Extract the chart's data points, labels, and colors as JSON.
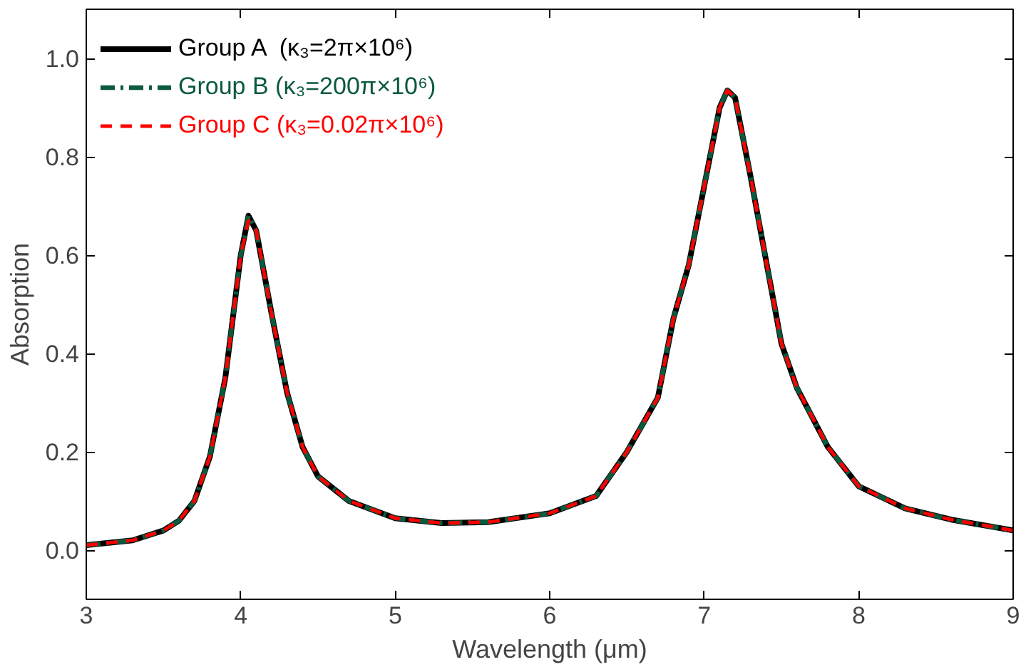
{
  "chart_data": {
    "type": "line",
    "xlabel": "Wavelength (μm)",
    "ylabel": "Absorption",
    "x": [
      3,
      3.3,
      3.5,
      3.6,
      3.7,
      3.8,
      3.9,
      4.0,
      4.05,
      4.1,
      4.2,
      4.3,
      4.4,
      4.5,
      4.7,
      5.0,
      5.3,
      5.6,
      6.0,
      6.3,
      6.5,
      6.7,
      6.8,
      6.9,
      7.0,
      7.1,
      7.15,
      7.2,
      7.3,
      7.4,
      7.5,
      7.6,
      7.7,
      7.8,
      8.0,
      8.3,
      8.6,
      9.0
    ],
    "series": [
      {
        "name": "Group A  (κ₃=2π×10⁶)",
        "color": "#000000",
        "line_style": "solid",
        "values": [
          0.01,
          0.02,
          0.04,
          0.06,
          0.1,
          0.19,
          0.35,
          0.6,
          0.68,
          0.65,
          0.48,
          0.32,
          0.21,
          0.15,
          0.1,
          0.065,
          0.055,
          0.057,
          0.075,
          0.11,
          0.2,
          0.31,
          0.47,
          0.58,
          0.74,
          0.9,
          0.935,
          0.92,
          0.76,
          0.59,
          0.42,
          0.33,
          0.27,
          0.21,
          0.13,
          0.085,
          0.062,
          0.04
        ]
      },
      {
        "name": "Group B (κ₃=200π×10⁶)",
        "color": "#0b5a3e",
        "line_style": "dashdot",
        "values": [
          0.01,
          0.02,
          0.04,
          0.06,
          0.1,
          0.19,
          0.35,
          0.6,
          0.68,
          0.65,
          0.48,
          0.32,
          0.21,
          0.15,
          0.1,
          0.065,
          0.055,
          0.057,
          0.075,
          0.11,
          0.2,
          0.31,
          0.47,
          0.58,
          0.74,
          0.9,
          0.935,
          0.92,
          0.76,
          0.59,
          0.42,
          0.33,
          0.27,
          0.21,
          0.13,
          0.085,
          0.062,
          0.04
        ]
      },
      {
        "name": "Group C (κ₃=0.02π×10⁶)",
        "color": "#ff0000",
        "line_style": "dashed",
        "values": [
          0.01,
          0.02,
          0.04,
          0.06,
          0.1,
          0.19,
          0.35,
          0.6,
          0.67,
          0.65,
          0.48,
          0.32,
          0.21,
          0.15,
          0.1,
          0.065,
          0.055,
          0.057,
          0.075,
          0.11,
          0.2,
          0.31,
          0.47,
          0.58,
          0.74,
          0.9,
          0.935,
          0.92,
          0.76,
          0.59,
          0.42,
          0.33,
          0.27,
          0.21,
          0.13,
          0.085,
          0.062,
          0.04
        ]
      }
    ],
    "xlim": [
      3,
      9
    ],
    "ylim": [
      -0.1,
      1.1
    ],
    "xticks": [
      3,
      4,
      5,
      6,
      7,
      8,
      9
    ],
    "yticks": [
      {
        "value": 0,
        "label": "0.0"
      },
      {
        "value": 0.2,
        "label": "0.2"
      },
      {
        "value": 0.4,
        "label": "0.4"
      },
      {
        "value": 0.6,
        "label": "0.6"
      },
      {
        "value": 0.8,
        "label": "0.8"
      },
      {
        "value": 1.0,
        "label": "1.0"
      }
    ],
    "grid": false,
    "legend": "top left",
    "marker": "none"
  }
}
